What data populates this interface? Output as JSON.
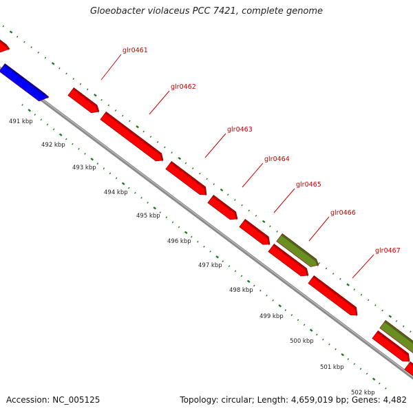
{
  "title": "Gloeobacter violaceus PCC 7421, complete genome",
  "accession_text": "Accession: NC_005125",
  "summary_text": "Topology: circular; Length: 4,659,019 bp; Genes: 4,482",
  "colors": {
    "backbone": "#8a8a8a",
    "tick_green": "#1e7a1e",
    "gene_red": "#ff0000",
    "gene_blue": "#0000ff",
    "gene_olive": "#6b8e23",
    "label_red": "#cc0000"
  },
  "scale_labels": [
    "491 kbp",
    "492 kbp",
    "493 kbp",
    "494 kbp",
    "495 kbp",
    "496 kbp",
    "497 kbp",
    "498 kbp",
    "499 kbp",
    "500 kbp",
    "501 kbp",
    "502 kbp"
  ],
  "gene_labels": [
    "glr0461",
    "glr0462",
    "glr0463",
    "glr0464",
    "glr0465",
    "glr0466",
    "glr0467"
  ]
}
